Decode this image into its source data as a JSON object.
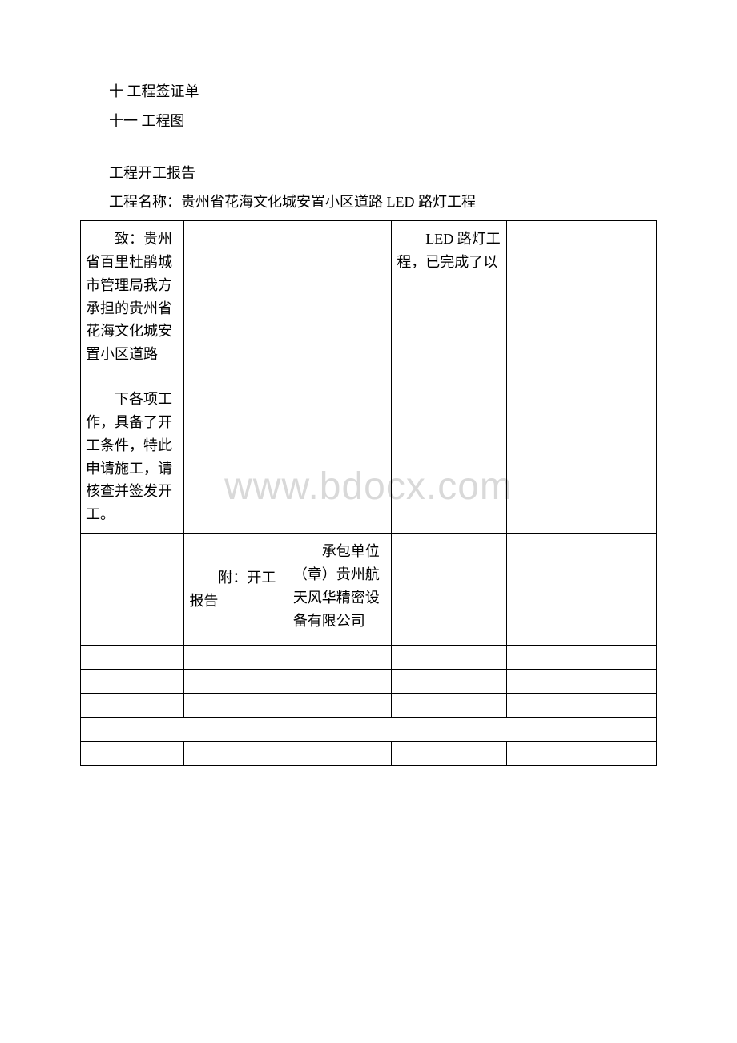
{
  "watermark": "www.bdocx.com",
  "lines": {
    "l1": "十 工程签证单",
    "l2": "十一 工程图",
    "l3": "工程开工报告",
    "l4": "工程名称：贵州省花海文化城安置小区道路 LED 路灯工程"
  },
  "table": {
    "r1c1": "　　致：贵州省百里杜鹃城市管理局我方承担的贵州省花海文化城安置小区道路",
    "r1c4": "　　LED 路灯工程，已完成了以",
    "r2c1": "　　下各项工作，具备了开工条件，特此申请施工，请核查并签发开工。",
    "r3c2": "　　附：开工报告",
    "r3c3": "　　承包单位（章）贵州航天风华精密设备有限公司"
  },
  "styles": {
    "background_color": "#ffffff",
    "text_color": "#000000",
    "border_color": "#000000",
    "watermark_color": "#d9d9d9",
    "font_family": "SimSun",
    "body_fontsize": 18,
    "watermark_fontsize": 48
  }
}
